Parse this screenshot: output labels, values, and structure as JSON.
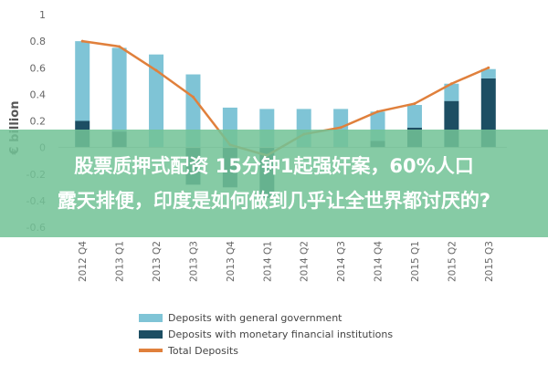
{
  "chart_data": {
    "type": "bar",
    "ylabel": "€ billion",
    "xlabel": "",
    "ylim": [
      -0.6,
      1.0
    ],
    "yticks": [
      "1",
      "0.8",
      "0.6",
      "0.4",
      "0.2",
      "0",
      "-0.2",
      "-0.4",
      "-0.6"
    ],
    "ytick_values": [
      1,
      0.8,
      0.6,
      0.4,
      0.2,
      0,
      -0.2,
      -0.4,
      -0.6
    ],
    "categories": [
      "2012 Q4",
      "2013 Q1",
      "2013 Q2",
      "2013 Q3",
      "2013 Q4",
      "2014 Q1",
      "2014 Q2",
      "2014 Q3",
      "2014 Q4",
      "2015 Q1",
      "2015 Q2",
      "2015 Q3"
    ],
    "series": [
      {
        "name": "Deposits with general government",
        "type": "bar",
        "color": "#7fc4d6",
        "values": [
          0.6,
          0.63,
          0.7,
          0.55,
          0.3,
          0.29,
          0.29,
          0.29,
          0.22,
          0.17,
          0.13,
          0.07
        ]
      },
      {
        "name": "Deposits with monetary financial institutions",
        "type": "bar",
        "color": "#1d4e63",
        "values": [
          0.2,
          0.12,
          0.0,
          -0.28,
          -0.3,
          -0.38,
          0.0,
          0.0,
          0.05,
          0.15,
          0.35,
          0.52
        ]
      },
      {
        "name": "Total Deposits",
        "type": "line",
        "color": "#e0803c",
        "values": [
          0.8,
          0.76,
          0.58,
          0.38,
          0.02,
          -0.06,
          0.1,
          0.15,
          0.27,
          0.33,
          0.48,
          0.6
        ]
      }
    ],
    "legend_position": "bottom-left",
    "grid": false
  },
  "overlay": {
    "line1": "股票质押式配资 15分钟1起强奸案，60%人口",
    "line2": "露天排便，印度是如何做到几乎让全世界都讨厌的?"
  }
}
